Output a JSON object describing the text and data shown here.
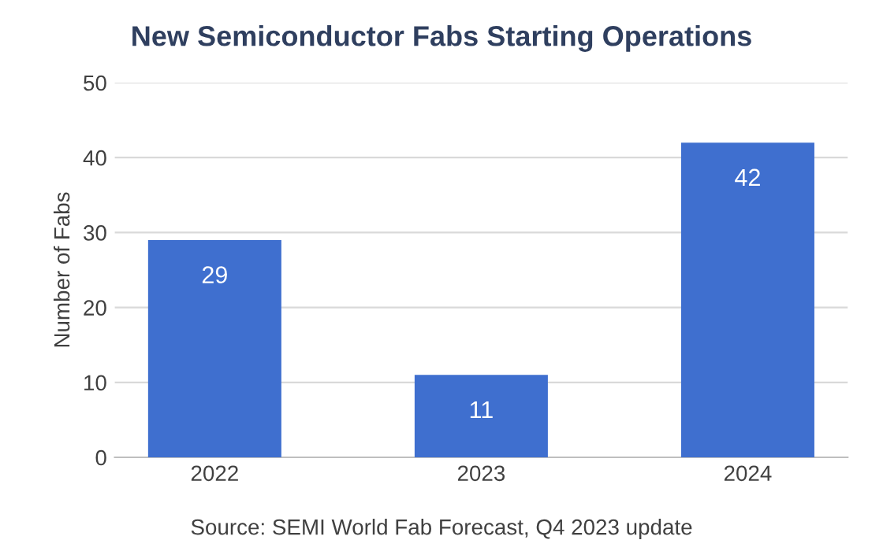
{
  "chart_data": {
    "type": "bar",
    "title": "New Semiconductor Fabs Starting Operations",
    "ylabel": "Number of Fabs",
    "categories": [
      "2022",
      "2023",
      "2024"
    ],
    "values": [
      29,
      11,
      42
    ],
    "color": "#3f6fcf",
    "ylim": [
      0,
      50
    ],
    "yticks": [
      0,
      10,
      20,
      30,
      40,
      50
    ],
    "grid": "y",
    "data_labels": true,
    "annotations": [
      "Source: SEMI World Fab Forecast, Q4 2023 update"
    ]
  }
}
